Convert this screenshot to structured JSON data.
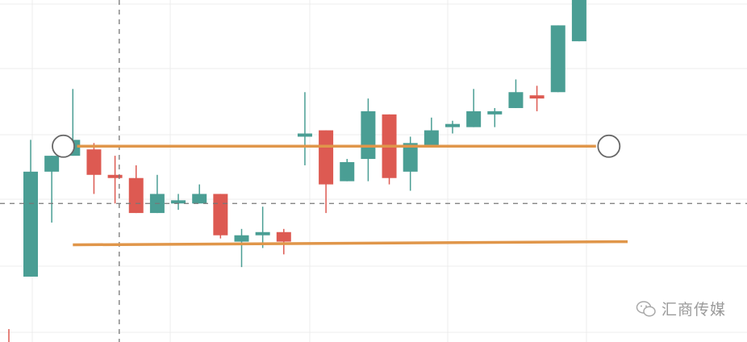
{
  "chart_data": {
    "type": "candlestick",
    "title": "",
    "xlabel": "",
    "ylabel": "",
    "grid": true,
    "ylim": [
      0,
      106
    ],
    "candles": [
      {
        "open": 17,
        "high": 60,
        "low": 17,
        "close": 50
      },
      {
        "open": 50,
        "high": 55,
        "low": 34,
        "close": 55
      },
      {
        "open": 55,
        "high": 76,
        "low": 55,
        "close": 60
      },
      {
        "open": 57,
        "high": 59,
        "low": 43,
        "close": 49
      },
      {
        "open": 49,
        "high": 55,
        "low": 40,
        "close": 48
      },
      {
        "open": 48,
        "high": 52,
        "low": 37,
        "close": 37
      },
      {
        "open": 37,
        "high": 49,
        "low": 37,
        "close": 43
      },
      {
        "open": 40,
        "high": 43,
        "low": 38,
        "close": 41
      },
      {
        "open": 40,
        "high": 46,
        "low": 40,
        "close": 43
      },
      {
        "open": 43,
        "high": 43,
        "low": 29,
        "close": 30
      },
      {
        "open": 28,
        "high": 32,
        "low": 20,
        "close": 30
      },
      {
        "open": 30,
        "high": 39,
        "low": 26,
        "close": 31
      },
      {
        "open": 31,
        "high": 32,
        "low": 24,
        "close": 28
      },
      {
        "open": 61,
        "high": 75,
        "low": 52,
        "close": 62
      },
      {
        "open": 63,
        "high": 63,
        "low": 37,
        "close": 46
      },
      {
        "open": 47,
        "high": 54,
        "low": 47,
        "close": 53
      },
      {
        "open": 54,
        "high": 73,
        "low": 47,
        "close": 69
      },
      {
        "open": 68,
        "high": 68,
        "low": 46,
        "close": 48
      },
      {
        "open": 50,
        "high": 61,
        "low": 44,
        "close": 59
      },
      {
        "open": 58,
        "high": 67,
        "low": 58,
        "close": 63
      },
      {
        "open": 64,
        "high": 66,
        "low": 62,
        "close": 65
      },
      {
        "open": 64,
        "high": 76,
        "low": 64,
        "close": 69
      },
      {
        "open": 68,
        "high": 70,
        "low": 64,
        "close": 69
      },
      {
        "open": 70,
        "high": 79,
        "low": 70,
        "close": 75
      },
      {
        "open": 74,
        "high": 77,
        "low": 69,
        "close": 73
      },
      {
        "open": 75,
        "high": 96,
        "low": 75,
        "close": 96
      },
      {
        "open": 91,
        "high": 106,
        "low": 91,
        "close": 105
      }
    ],
    "trend_lines": [
      {
        "label": "",
        "start": {
          "x": 2.2,
          "y": 58
        },
        "end": {
          "x": 26.8,
          "y": 58
        }
      },
      {
        "label": "",
        "start": {
          "x": 2.0,
          "y": 27
        },
        "end": {
          "x": 28.3,
          "y": 28
        }
      }
    ],
    "crosshair": {
      "x": 4.2,
      "y": 40
    }
  },
  "colors": {
    "up": "#4a9e94",
    "down": "#dd5a52",
    "trend": "#e0964a",
    "grid": "#ececec",
    "crosshair": "#777777",
    "handle": "#666666"
  },
  "watermark": {
    "icon": "wechat-icon",
    "text": "汇商传媒"
  }
}
